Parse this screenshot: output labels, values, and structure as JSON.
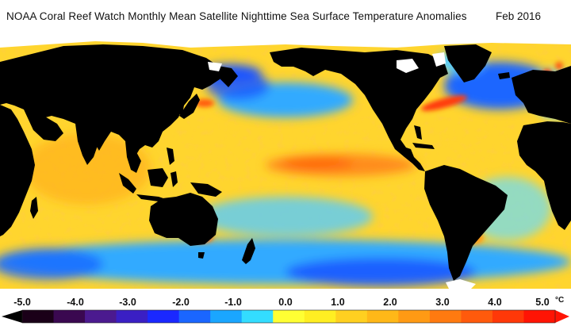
{
  "title": "NOAA Coral Reef Watch Monthly Mean Satellite Nighttime Sea Surface Temperature Anomalies",
  "date": "Feb 2016",
  "legend": {
    "ticks": [
      "-5.0",
      "-4.0",
      "-3.0",
      "-2.0",
      "-1.0",
      "0.0",
      "1.0",
      "2.0",
      "3.0",
      "4.0",
      "5.0"
    ],
    "unit": "°C",
    "colors": [
      "#1a0018",
      "#3a0850",
      "#4b1a8f",
      "#3a1fc4",
      "#1a28ff",
      "#1a66ff",
      "#1aa6ff",
      "#33ddff",
      "#ffff33",
      "#ffee22",
      "#ffd020",
      "#ffb818",
      "#ff9a14",
      "#ff7a10",
      "#ff5a0c",
      "#ff3808",
      "#ff1404"
    ]
  },
  "map_colors": {
    "land": "#000000",
    "ice": "#ffffff",
    "ocean_warm": "#ffdd33",
    "warm_strong": "#ff8c1a",
    "cool": "#33aaff",
    "cold": "#1a55ff"
  }
}
